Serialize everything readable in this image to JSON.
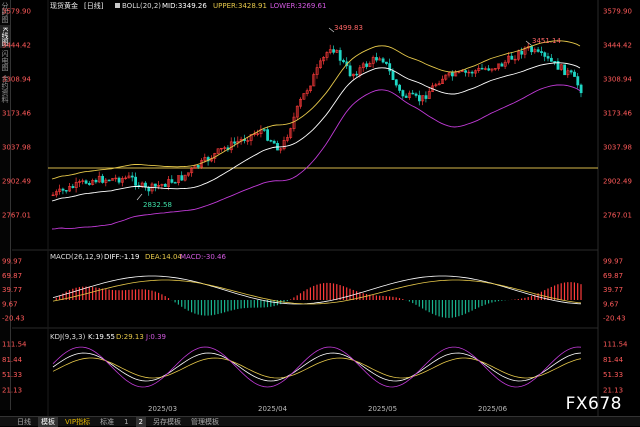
{
  "sidebar": {
    "items": [
      "分时图",
      "K线图",
      "闪电图",
      "合约资料"
    ]
  },
  "header": {
    "instrument": "现货黄金",
    "period": "[日线]",
    "boll": "BOLL(20,2)",
    "mid": "MID:3349.26",
    "upper": "UPPER:3428.91",
    "lower": "LOWER:3269.61"
  },
  "main_axis": {
    "left_ticks": [
      "3579.90",
      "3444.42",
      "3308.94",
      "3173.46",
      "3037.98",
      "2902.49",
      "2767.01"
    ],
    "right_ticks": [
      "3579.90",
      "3444.42",
      "3308.94",
      "3173.46",
      "3037.98",
      "2902.49",
      "2767.01"
    ]
  },
  "annotations": {
    "low": "2832.58",
    "high": "3499.83",
    "recent_high": "3451.14"
  },
  "macd": {
    "title": "MACD(26,12,9)",
    "diff": "DIFF:-1.19",
    "dea": "DEA:14.04",
    "macd": "MACD:-30.46",
    "ticks": [
      "99.97",
      "69.87",
      "39.77",
      "9.67",
      "-20.43"
    ]
  },
  "kdj": {
    "title": "KDJ(9,3,3)",
    "k": "K:19.55",
    "d": "D:29.13",
    "j": "J:0.39",
    "ticks": [
      "111.54",
      "81.44",
      "51.33",
      "21.13"
    ]
  },
  "dates": [
    "2025/03",
    "2025/04",
    "2025/05",
    "2025/06"
  ],
  "bottom_tabs": {
    "items": [
      "日线",
      "模板",
      "VIP指标",
      "标准",
      "1",
      "2",
      "另存模板",
      "管理模板"
    ]
  },
  "watermark": "FX678",
  "colors": {
    "up": "#ff3b3b",
    "down": "#1fd6c4",
    "mid": "#ffffff",
    "upper": "#e6c84a",
    "lower": "#c03ad6",
    "ref": "#e6c84a"
  }
}
